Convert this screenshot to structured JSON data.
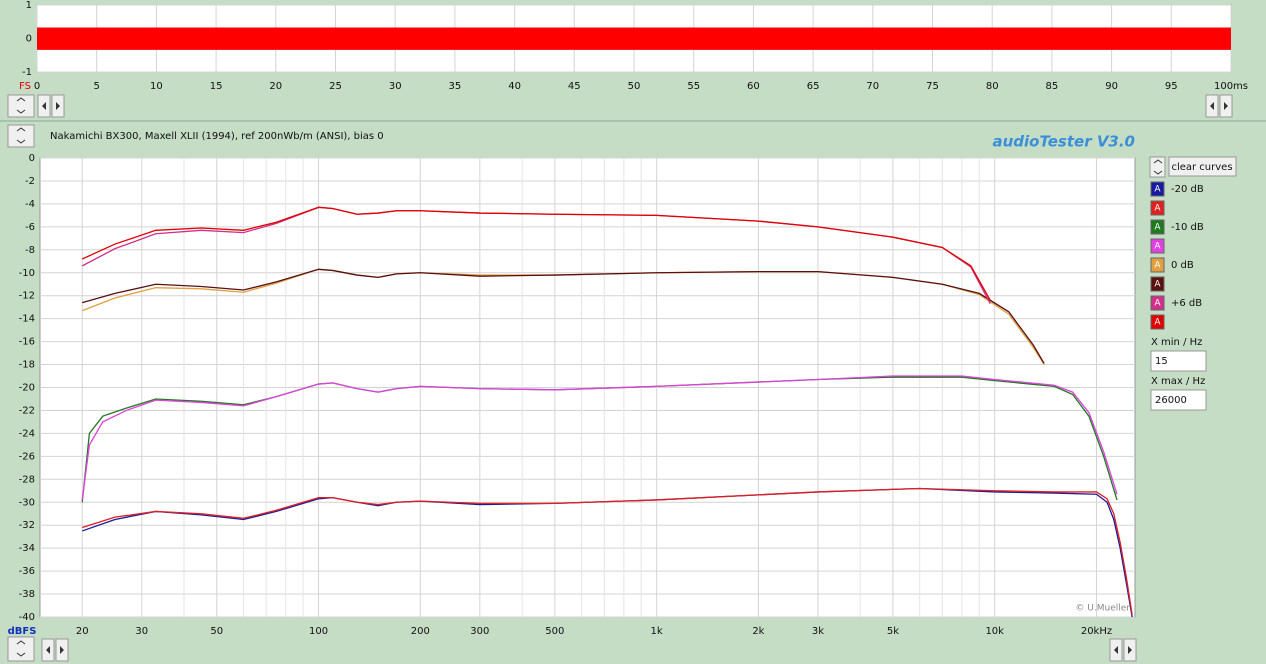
{
  "chart_data": [
    {
      "type": "area",
      "y_label": "FS",
      "color": "#ff0000",
      "x": [
        0,
        100
      ],
      "upper": [
        0.33,
        0.33
      ],
      "lower": [
        -0.34,
        -0.34
      ],
      "xlim": [
        0,
        100
      ],
      "ylim": [
        -1,
        1
      ],
      "xticks": [
        0,
        5,
        10,
        15,
        20,
        25,
        30,
        35,
        40,
        45,
        50,
        55,
        60,
        65,
        70,
        75,
        80,
        85,
        90,
        95,
        {
          "value": 100,
          "label": "100ms"
        }
      ],
      "yticks": [
        1,
        0,
        -1
      ],
      "grid": true
    },
    {
      "type": "line",
      "title": "Nakamichi BX300, Maxell XLII (1994), ref 200nWb/m (ANSI), bias 0",
      "y_label": "dBFS",
      "log_x": true,
      "grid": true,
      "xlim": [
        15,
        26000
      ],
      "ylim": [
        -40,
        0
      ],
      "xticks": [
        20,
        30,
        50,
        100,
        200,
        300,
        500,
        {
          "value": 1000,
          "label": "1k"
        },
        {
          "value": 2000,
          "label": "2k"
        },
        {
          "value": 3000,
          "label": "3k"
        },
        {
          "value": 5000,
          "label": "5k"
        },
        {
          "value": 10000,
          "label": "10k"
        },
        {
          "value": 20000,
          "label": "20kHz"
        }
      ],
      "xminor": [
        40,
        60,
        70,
        80,
        90,
        400,
        600,
        700,
        800,
        900,
        4000,
        6000,
        7000,
        8000,
        9000
      ],
      "yticks": [
        0,
        -2,
        -4,
        -6,
        -8,
        -10,
        -12,
        -14,
        -16,
        -18,
        -20,
        -22,
        -24,
        -26,
        -28,
        -30,
        -32,
        -34,
        -36,
        -38,
        -40
      ],
      "series": [
        {
          "name": "-20 dB",
          "color": "#1a1aa0",
          "x": [
            20,
            25,
            33,
            45,
            60,
            75,
            100,
            110,
            130,
            150,
            170,
            200,
            300,
            500,
            1000,
            3000,
            6000,
            10000,
            15000,
            20000,
            21500,
            22500,
            23500,
            24500,
            25500
          ],
          "values": [
            -32.5,
            -31.5,
            -30.8,
            -31.1,
            -31.5,
            -30.8,
            -29.7,
            -29.6,
            -30.0,
            -30.3,
            -30.0,
            -29.9,
            -30.2,
            -30.1,
            -29.8,
            -29.1,
            -28.8,
            -29.1,
            -29.2,
            -29.3,
            -30,
            -31.5,
            -34,
            -37,
            -40
          ]
        },
        {
          "color": "#e02020",
          "x": [
            20,
            25,
            33,
            45,
            60,
            75,
            100,
            110,
            130,
            150,
            170,
            200,
            300,
            500,
            1000,
            3000,
            6000,
            10000,
            15000,
            20000,
            21500,
            22500,
            23500,
            24500,
            25500
          ],
          "values": [
            -32.2,
            -31.3,
            -30.8,
            -31.0,
            -31.4,
            -30.7,
            -29.6,
            -29.6,
            -30.0,
            -30.2,
            -30.0,
            -29.9,
            -30.1,
            -30.1,
            -29.8,
            -29.1,
            -28.8,
            -29.0,
            -29.1,
            -29.1,
            -29.7,
            -31,
            -33.5,
            -36.5,
            -39.8
          ]
        },
        {
          "name": "-10 dB",
          "color": "#1e7a1e",
          "x": [
            20,
            21,
            23,
            27,
            33,
            45,
            60,
            75,
            100,
            110,
            130,
            150,
            170,
            200,
            300,
            500,
            1000,
            3000,
            5000,
            8000,
            10000,
            15000,
            17000,
            19000,
            21000,
            23000
          ],
          "values": [
            -30,
            -24,
            -22.5,
            -21.8,
            -21,
            -21.2,
            -21.5,
            -20.8,
            -19.7,
            -19.6,
            -20.1,
            -20.4,
            -20.1,
            -19.9,
            -20.1,
            -20.2,
            -19.9,
            -19.3,
            -19.1,
            -19.1,
            -19.4,
            -19.9,
            -20.6,
            -22.5,
            -26,
            -29.8
          ]
        },
        {
          "color": "#e040e0",
          "x": [
            20,
            21,
            23,
            27,
            33,
            45,
            60,
            75,
            100,
            110,
            130,
            150,
            170,
            200,
            300,
            500,
            1000,
            3000,
            5000,
            8000,
            10000,
            15000,
            17000,
            19000,
            21000,
            23000
          ],
          "values": [
            -29.8,
            -25,
            -23,
            -22,
            -21.1,
            -21.3,
            -21.6,
            -20.8,
            -19.7,
            -19.6,
            -20.1,
            -20.4,
            -20.1,
            -19.9,
            -20.1,
            -20.2,
            -19.9,
            -19.3,
            -19.0,
            -19.0,
            -19.3,
            -19.8,
            -20.4,
            -22.2,
            -25.6,
            -29.3
          ]
        },
        {
          "name": "0 dB",
          "color": "#e0a040",
          "x": [
            20,
            25,
            33,
            45,
            60,
            75,
            100,
            110,
            130,
            150,
            170,
            200,
            300,
            500,
            1000,
            2000,
            3000,
            5000,
            7000,
            9000,
            11000,
            13000,
            14000
          ],
          "values": [
            -13.3,
            -12.2,
            -11.3,
            -11.4,
            -11.7,
            -10.9,
            -9.7,
            -9.8,
            -10.2,
            -10.4,
            -10.1,
            -10.0,
            -10.2,
            -10.2,
            -10.0,
            -9.9,
            -9.9,
            -10.4,
            -11.0,
            -11.9,
            -13.6,
            -16.5,
            -18.0
          ]
        },
        {
          "color": "#5a1010",
          "x": [
            20,
            25,
            33,
            45,
            60,
            75,
            100,
            110,
            130,
            150,
            170,
            200,
            300,
            500,
            1000,
            2000,
            3000,
            5000,
            7000,
            9000,
            11000,
            13000,
            14000
          ],
          "values": [
            -12.6,
            -11.8,
            -11.0,
            -11.2,
            -11.5,
            -10.8,
            -9.7,
            -9.8,
            -10.2,
            -10.4,
            -10.1,
            -10.0,
            -10.3,
            -10.2,
            -10.0,
            -9.9,
            -9.9,
            -10.4,
            -11.0,
            -11.8,
            -13.4,
            -16.3,
            -17.9
          ]
        },
        {
          "name": "+6 dB",
          "color": "#d0308a",
          "x": [
            20,
            25,
            33,
            45,
            60,
            75,
            100,
            110,
            130,
            150,
            170,
            200,
            300,
            500,
            1000,
            2000,
            3000,
            5000,
            7000,
            8500,
            9700
          ],
          "values": [
            -9.4,
            -7.9,
            -6.6,
            -6.3,
            -6.5,
            -5.7,
            -4.3,
            -4.4,
            -4.9,
            -4.8,
            -4.6,
            -4.6,
            -4.8,
            -4.9,
            -5.0,
            -5.5,
            -6.0,
            -6.9,
            -7.8,
            -9.5,
            -12.7
          ]
        },
        {
          "color": "#e00000",
          "x": [
            20,
            25,
            33,
            45,
            60,
            75,
            100,
            110,
            130,
            150,
            170,
            200,
            300,
            500,
            1000,
            2000,
            3000,
            5000,
            7000,
            8500,
            9700
          ],
          "values": [
            -8.8,
            -7.5,
            -6.3,
            -6.1,
            -6.3,
            -5.6,
            -4.3,
            -4.4,
            -4.9,
            -4.8,
            -4.6,
            -4.6,
            -4.8,
            -4.9,
            -5.0,
            -5.5,
            -6.0,
            -6.9,
            -7.8,
            -9.4,
            -12.4
          ]
        }
      ]
    }
  ],
  "ui": {
    "app_name": "audioTester  V3.0",
    "clear_button": "clear curves",
    "legend_icon": "A",
    "xmin_label": "X min / Hz",
    "xmax_label": "X max / Hz",
    "copyright": "© U.Mueller"
  }
}
